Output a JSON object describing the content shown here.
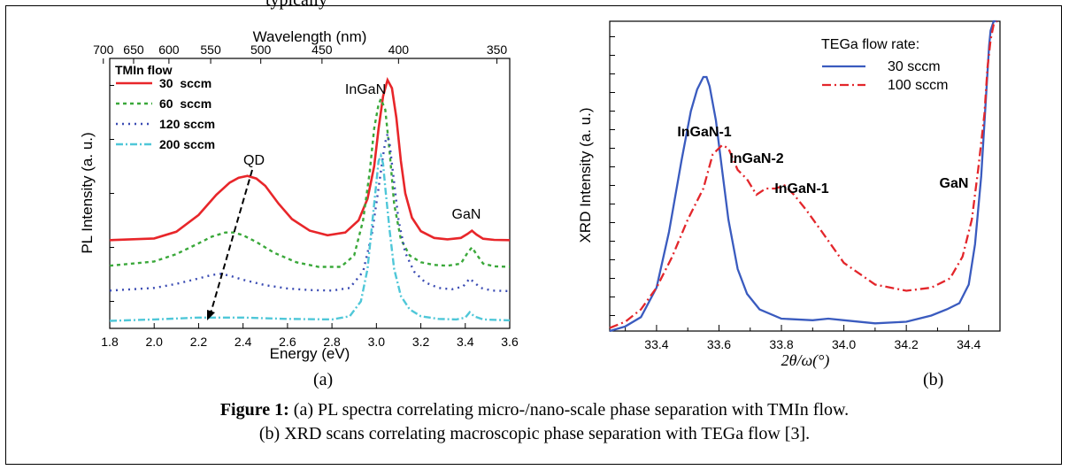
{
  "top_cut_text": "typically",
  "caption": {
    "label": "Figure 1:",
    "line1": "(a) PL spectra correlating micro-/nano-scale phase separation with TMIn flow.",
    "line2": "(b) XRD scans correlating macroscopic phase separation with TEGa flow [3]."
  },
  "panel_labels": {
    "a": "(a)",
    "b": "(b)"
  },
  "chart_data": [
    {
      "type": "line",
      "xlabel": "Energy (eV)",
      "ylabel": "PL Intensity (a. u.)",
      "top_axis_label": "Wavelength (nm)",
      "xlim": [
        1.8,
        3.6
      ],
      "ylim": [
        0,
        10
      ],
      "x_ticks": [
        "1.8",
        "2.0",
        "2.2",
        "2.4",
        "2.6",
        "2.8",
        "3.0",
        "3.2",
        "3.4",
        "3.6"
      ],
      "top_ticks": [
        "700",
        "650",
        "600",
        "550",
        "500",
        "450",
        "400",
        "350"
      ],
      "legend_title": "TMIn flow",
      "annotations": [
        "InGaN",
        "GaN",
        "QD"
      ],
      "series": [
        {
          "name": "30  sccm",
          "color": "#e8262a",
          "dash": "solid",
          "x": [
            1.8,
            2.0,
            2.1,
            2.2,
            2.28,
            2.34,
            2.38,
            2.42,
            2.46,
            2.5,
            2.56,
            2.62,
            2.7,
            2.78,
            2.86,
            2.92,
            2.96,
            2.99,
            3.01,
            3.03,
            3.05,
            3.07,
            3.09,
            3.11,
            3.13,
            3.16,
            3.2,
            3.26,
            3.32,
            3.38,
            3.41,
            3.43,
            3.45,
            3.48,
            3.53,
            3.6
          ],
          "y": [
            3.27,
            3.33,
            3.58,
            4.2,
            4.95,
            5.4,
            5.58,
            5.65,
            5.55,
            5.28,
            4.62,
            4.05,
            3.62,
            3.45,
            3.55,
            4.0,
            4.8,
            6.0,
            7.4,
            8.6,
            9.2,
            8.9,
            7.8,
            6.2,
            5.0,
            4.1,
            3.6,
            3.35,
            3.3,
            3.35,
            3.5,
            3.62,
            3.48,
            3.32,
            3.28,
            3.27
          ]
        },
        {
          "name": "60  sccm",
          "color": "#3aa83a",
          "dash": "4,4",
          "x": [
            1.8,
            2.0,
            2.1,
            2.2,
            2.26,
            2.32,
            2.36,
            2.4,
            2.46,
            2.54,
            2.64,
            2.74,
            2.84,
            2.9,
            2.94,
            2.97,
            2.99,
            3.01,
            3.02,
            3.04,
            3.06,
            3.08,
            3.11,
            3.15,
            3.2,
            3.26,
            3.32,
            3.38,
            3.41,
            3.43,
            3.45,
            3.48,
            3.53,
            3.6
          ],
          "y": [
            2.32,
            2.48,
            2.75,
            3.15,
            3.4,
            3.55,
            3.55,
            3.45,
            3.2,
            2.8,
            2.45,
            2.28,
            2.28,
            2.7,
            4.0,
            5.8,
            7.4,
            8.3,
            8.5,
            8.1,
            6.5,
            4.6,
            3.3,
            2.7,
            2.45,
            2.35,
            2.32,
            2.4,
            2.8,
            3.0,
            2.75,
            2.4,
            2.3,
            2.28
          ]
        },
        {
          "name": "120 sccm",
          "color": "#3a4bb3",
          "dash": "2,5",
          "x": [
            1.8,
            2.0,
            2.1,
            2.2,
            2.26,
            2.3,
            2.34,
            2.4,
            2.5,
            2.6,
            2.7,
            2.8,
            2.88,
            2.94,
            2.98,
            3.01,
            3.03,
            3.04,
            3.05,
            3.06,
            3.08,
            3.1,
            3.13,
            3.17,
            3.22,
            3.28,
            3.34,
            3.39,
            3.42,
            3.44,
            3.47,
            3.52,
            3.6
          ],
          "y": [
            1.4,
            1.5,
            1.65,
            1.85,
            1.98,
            2.02,
            1.95,
            1.8,
            1.6,
            1.48,
            1.42,
            1.4,
            1.5,
            2.1,
            3.5,
            5.2,
            6.4,
            6.9,
            7.2,
            6.8,
            5.4,
            4.0,
            2.8,
            2.1,
            1.7,
            1.5,
            1.45,
            1.55,
            1.85,
            1.7,
            1.5,
            1.4,
            1.38
          ]
        },
        {
          "name": "200 sccm",
          "color": "#4fc7d8",
          "dash": "8,3,2,3",
          "x": [
            1.8,
            2.0,
            2.2,
            2.4,
            2.6,
            2.8,
            2.88,
            2.93,
            2.96,
            2.98,
            3.0,
            3.01,
            3.02,
            3.03,
            3.04,
            3.06,
            3.08,
            3.11,
            3.15,
            3.2,
            3.28,
            3.36,
            3.4,
            3.42,
            3.44,
            3.48,
            3.6
          ],
          "y": [
            0.28,
            0.33,
            0.4,
            0.4,
            0.35,
            0.33,
            0.45,
            1.0,
            2.2,
            3.8,
            5.4,
            6.2,
            6.4,
            6.1,
            5.2,
            3.6,
            2.2,
            1.2,
            0.7,
            0.45,
            0.35,
            0.33,
            0.4,
            0.6,
            0.45,
            0.33,
            0.3
          ]
        }
      ]
    },
    {
      "type": "line",
      "xlabel": "2θ/ω(°)",
      "ylabel": "XRD Intensity (a. u.)",
      "xlim": [
        33.25,
        34.5
      ],
      "ylim": [
        0,
        10
      ],
      "x_ticks": [
        "33.4",
        "33.6",
        "33.8",
        "34.0",
        "34.2",
        "34.4"
      ],
      "legend_title": "TEGa flow rate:",
      "annotations": [
        "InGaN-1",
        "InGaN-2",
        "InGaN-1",
        "GaN"
      ],
      "series": [
        {
          "name": "30 sccm",
          "color": "#3a5bbf",
          "dash": "solid",
          "x": [
            33.25,
            33.3,
            33.35,
            33.4,
            33.44,
            33.48,
            33.51,
            33.53,
            33.55,
            33.56,
            33.57,
            33.59,
            33.61,
            33.63,
            33.66,
            33.69,
            33.73,
            33.8,
            33.9,
            33.95,
            34.0,
            34.1,
            34.2,
            34.28,
            34.33,
            34.37,
            34.4,
            34.42,
            34.44,
            34.455,
            34.465,
            34.47,
            34.48,
            34.49
          ],
          "y": [
            0.0,
            0.15,
            0.45,
            1.4,
            3.2,
            5.5,
            7.1,
            7.8,
            8.2,
            8.2,
            7.9,
            6.8,
            5.2,
            3.6,
            2.0,
            1.2,
            0.7,
            0.4,
            0.35,
            0.4,
            0.35,
            0.25,
            0.3,
            0.5,
            0.7,
            0.9,
            1.5,
            2.8,
            5.0,
            7.5,
            9.2,
            9.7,
            10.0,
            10.0
          ]
        },
        {
          "name": "100 sccm",
          "color": "#e3262b",
          "dash": "10,4,2,4",
          "x": [
            33.25,
            33.3,
            33.35,
            33.4,
            33.45,
            33.5,
            33.55,
            33.58,
            33.61,
            33.63,
            33.66,
            33.69,
            33.72,
            33.75,
            33.78,
            33.81,
            33.84,
            33.88,
            33.93,
            34.0,
            34.1,
            34.2,
            34.28,
            34.34,
            34.38,
            34.41,
            34.43,
            34.45,
            34.46,
            34.47,
            34.48,
            34.49
          ],
          "y": [
            0.1,
            0.3,
            0.7,
            1.4,
            2.4,
            3.6,
            4.6,
            5.7,
            6.0,
            5.9,
            5.2,
            4.9,
            4.4,
            4.6,
            4.6,
            4.7,
            4.4,
            3.9,
            3.2,
            2.2,
            1.5,
            1.3,
            1.4,
            1.7,
            2.4,
            3.6,
            5.2,
            7.0,
            8.5,
            9.4,
            9.9,
            10.0
          ]
        }
      ]
    }
  ]
}
